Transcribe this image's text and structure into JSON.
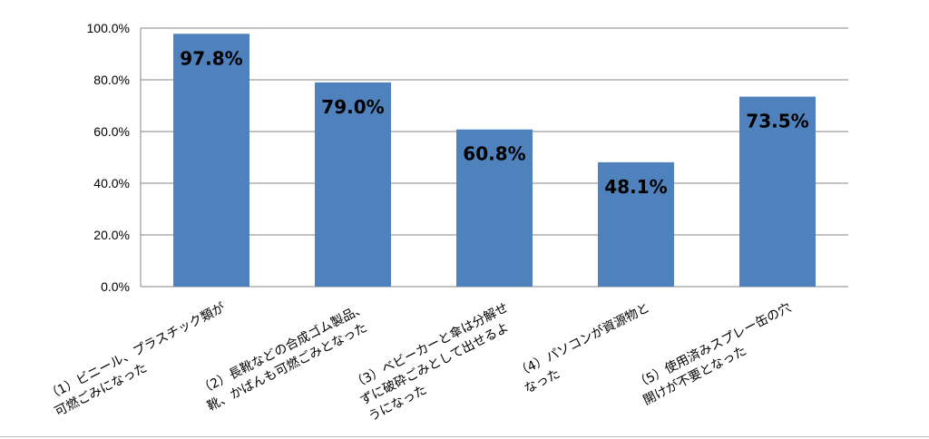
{
  "chart_data": {
    "type": "bar",
    "title": "",
    "xlabel": "",
    "ylabel": "",
    "ylim": [
      0,
      100
    ],
    "y_ticks": [
      {
        "value": 0,
        "label": "0.0%"
      },
      {
        "value": 20,
        "label": "20.0%"
      },
      {
        "value": 40,
        "label": "40.0%"
      },
      {
        "value": 60,
        "label": "60.0%"
      },
      {
        "value": 80,
        "label": "80.0%"
      },
      {
        "value": 100,
        "label": "100.0%"
      }
    ],
    "grid": true,
    "legend": "none",
    "bar_color": "#4F81BD",
    "categories": [
      [
        "（1）ビニール、プラスチック類が",
        "可燃ごみになった"
      ],
      [
        "（2）長靴などの合成ゴム製品、",
        "靴、かばんも可燃ごみとなった"
      ],
      [
        "（3）ベビーカーと傘は分解せ",
        "ずに破砕ごみとして出せるよ",
        "うになった"
      ],
      [
        "（4）パソコンが資源物と",
        "なった"
      ],
      [
        "（5）使用済みスプレー缶の穴",
        "開けが不要となった"
      ]
    ],
    "values": [
      97.8,
      79.0,
      60.8,
      48.1,
      73.5
    ],
    "data_labels": [
      "97.8%",
      "79.0%",
      "60.8%",
      "48.1%",
      "73.5%"
    ]
  }
}
